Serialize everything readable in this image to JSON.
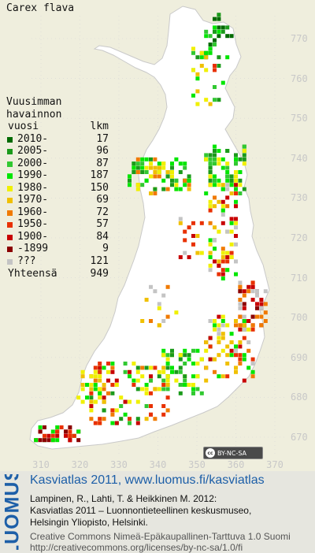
{
  "species": "Carex flava",
  "legend": {
    "heading": [
      "Vuusimman",
      "havainnon"
    ],
    "col_year": "vuosi",
    "col_count": "lkm",
    "rows": [
      {
        "label": "2010-",
        "count": "17",
        "color": "#006a00"
      },
      {
        "label": "2005-",
        "count": "96",
        "color": "#1b9a1b"
      },
      {
        "label": "2000-",
        "count": "87",
        "color": "#31c831"
      },
      {
        "label": "1990-",
        "count": "187",
        "color": "#00e600"
      },
      {
        "label": "1980-",
        "count": "150",
        "color": "#f0f000"
      },
      {
        "label": "1970-",
        "count": "69",
        "color": "#f0c000"
      },
      {
        "label": "1960-",
        "count": "72",
        "color": "#f07a00"
      },
      {
        "label": "1950-",
        "count": "57",
        "color": "#e83000"
      },
      {
        "label": "1900-",
        "count": "84",
        "color": "#c80000"
      },
      {
        "label": "-1899",
        "count": "9",
        "color": "#8b0000"
      },
      {
        "label": "???",
        "count": "121",
        "color": "#c4c4c4"
      }
    ],
    "total_label": "Yhteensä",
    "total_count": "949"
  },
  "axes": {
    "y_ticks": [
      "770",
      "760",
      "750",
      "740",
      "730",
      "720",
      "710",
      "700",
      "690",
      "680",
      "670"
    ],
    "x_ticks": [
      "310",
      "320",
      "330",
      "340",
      "350",
      "360",
      "370"
    ]
  },
  "license_badge": "BY-NC-SA",
  "footer": {
    "logo": "LUOMUS",
    "heading": "Kasviatlas 2011, www.luomus.fi/kasviatlas",
    "reference": [
      "Lampinen, R., Lahti, T. & Heikkinen M. 2012:",
      "Kasviatlas 2011 – Luonnontieteellinen keskusmuseo,",
      "Helsingin Yliopisto, Helsinki."
    ],
    "license": [
      "Creative Commons Nimeä-Epäkaupallinen-Tarttuva 1.0 Suomi",
      "http://creativecommons.org/licenses/by-nc-sa/1.0/fi"
    ]
  },
  "colors": {
    "background": "#efeedd",
    "land": "#ffffff",
    "grid": "#d8d8d8",
    "footer_blue": "#1d5fa8"
  }
}
